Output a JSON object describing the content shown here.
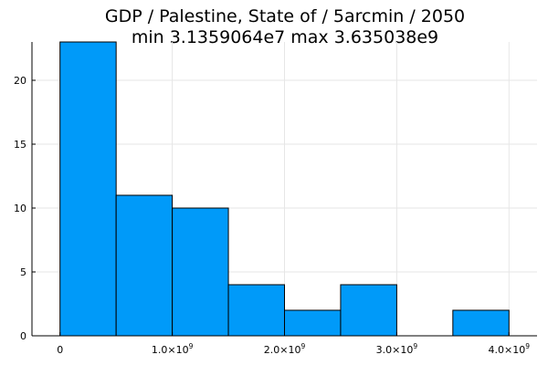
{
  "chart_data": {
    "type": "bar",
    "title_line1": "GDP / Palestine, State of / 5arcmin / 2050",
    "title_line2": "min 3.1359064e7  max 3.635038e9",
    "bin_width": 500000000,
    "bins": [
      {
        "start": 0,
        "end": 500000000,
        "count": 23
      },
      {
        "start": 500000000,
        "end": 1000000000,
        "count": 11
      },
      {
        "start": 1000000000,
        "end": 1500000000,
        "count": 10
      },
      {
        "start": 1500000000,
        "end": 2000000000,
        "count": 4
      },
      {
        "start": 2000000000,
        "end": 2500000000,
        "count": 2
      },
      {
        "start": 2500000000,
        "end": 3000000000,
        "count": 4
      },
      {
        "start": 3000000000,
        "end": 3500000000,
        "count": 0
      },
      {
        "start": 3500000000,
        "end": 4000000000,
        "count": 2
      }
    ],
    "xlim": [
      -250000000,
      4250000000
    ],
    "ylim": [
      0,
      23
    ],
    "x_ticks": [
      {
        "value": 0,
        "mantissa": "0",
        "exponent": ""
      },
      {
        "value": 1000000000,
        "mantissa": "1.0×10",
        "exponent": "9"
      },
      {
        "value": 2000000000,
        "mantissa": "2.0×10",
        "exponent": "9"
      },
      {
        "value": 3000000000,
        "mantissa": "3.0×10",
        "exponent": "9"
      },
      {
        "value": 4000000000,
        "mantissa": "4.0×10",
        "exponent": "9"
      }
    ],
    "y_ticks": [
      0,
      5,
      10,
      15,
      20
    ],
    "grid": true,
    "legend": "none",
    "bar_color": "#009af9",
    "xlabel": "",
    "ylabel": ""
  }
}
